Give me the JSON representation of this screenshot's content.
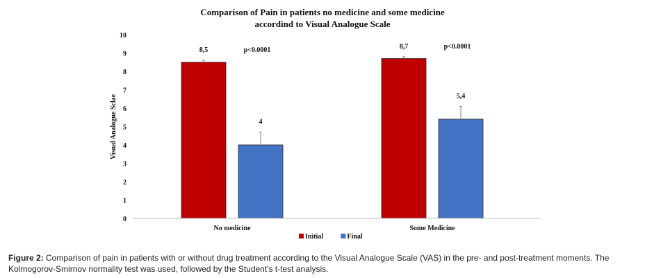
{
  "chart_data": {
    "type": "bar",
    "title_line1": "Comparison of Pain in patients no medicine and some medicine",
    "title_line2": "accordind to Visual Analogue Scale",
    "ylabel": "Visual Analogue Sclae",
    "xlabel": "",
    "ylim": [
      0,
      10
    ],
    "yticks": [
      "0",
      "1",
      "2",
      "3",
      "4",
      "5",
      "6",
      "7",
      "8",
      "9",
      "10"
    ],
    "categories": [
      "No medicine",
      "Some Medicine"
    ],
    "series": [
      {
        "name": "Initial",
        "color": "#c00000",
        "values": [
          8.5,
          8.7
        ],
        "errors": [
          0.1,
          0.1
        ],
        "labels": [
          "8,5",
          "8,7"
        ]
      },
      {
        "name": "Final",
        "color": "#4472c4",
        "values": [
          4.0,
          5.4
        ],
        "errors": [
          0.7,
          0.7
        ],
        "labels": [
          "4",
          "5,4"
        ]
      }
    ],
    "annotations": [
      "p<0.0001",
      "p<0.0001"
    ],
    "grid": false,
    "legend_position": "bottom"
  },
  "caption": {
    "figure_label": "Figure 2:",
    "text": " Comparison of pain in patients with or without drug treatment according to the Visual Analogue Scale (VAS) in the pre- and post-treatment moments. The Kolmogorov-Smirnov normality test was used, followed by the Student's t-test analysis."
  }
}
